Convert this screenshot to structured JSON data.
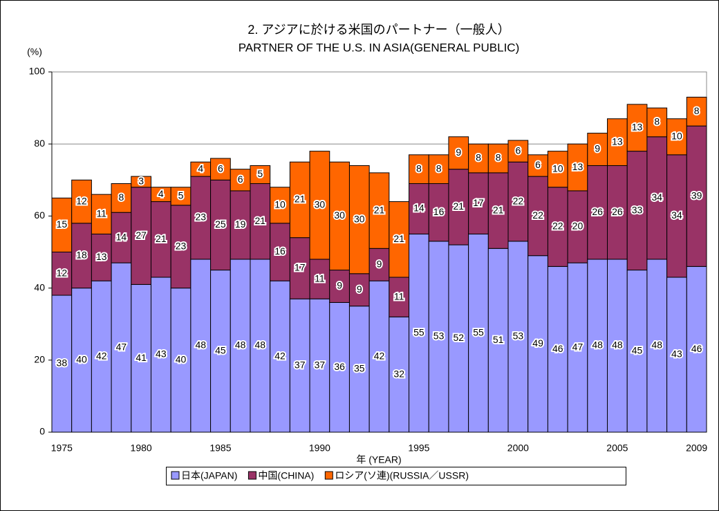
{
  "chart_data": {
    "type": "stacked_bar",
    "title": "2. アジアに於ける米国のパートナー（一般人）",
    "subtitle": "PARTNER OF THE U.S. IN ASIA(GENERAL PUBLIC)",
    "y_label": "(%)",
    "x_label": "年 (YEAR)",
    "categories": [
      "1975",
      null,
      null,
      null,
      "1980",
      null,
      null,
      null,
      "1985",
      null,
      null,
      null,
      null,
      "1990",
      null,
      null,
      null,
      null,
      "1995",
      null,
      null,
      null,
      null,
      "2000",
      null,
      null,
      null,
      null,
      "2005",
      null,
      null,
      null,
      "2009"
    ],
    "series": [
      {
        "name": "日本(JAPAN)",
        "color": "#9999ff",
        "values": [
          38,
          40,
          42,
          47,
          41,
          43,
          40,
          48,
          45,
          48,
          48,
          42,
          37,
          37,
          36,
          35,
          42,
          32,
          55,
          53,
          52,
          55,
          51,
          53,
          49,
          46,
          47,
          48,
          48,
          45,
          48,
          43,
          46
        ]
      },
      {
        "name": "中国(CHINA)",
        "color": "#993366",
        "values": [
          12,
          18,
          13,
          14,
          27,
          21,
          23,
          23,
          25,
          19,
          21,
          16,
          17,
          11,
          9,
          9,
          9,
          11,
          14,
          16,
          21,
          17,
          21,
          22,
          22,
          22,
          20,
          26,
          26,
          33,
          34,
          34,
          39
        ]
      },
      {
        "name": "ロシア(ソ連)(RUSSIA／USSR)",
        "color": "#ff6600",
        "values": [
          15,
          12,
          11,
          8,
          3,
          4,
          5,
          4,
          6,
          6,
          5,
          10,
          21,
          30,
          30,
          30,
          21,
          21,
          8,
          8,
          9,
          8,
          8,
          6,
          6,
          10,
          13,
          9,
          13,
          13,
          8,
          10,
          8
        ]
      }
    ],
    "ylim": [
      0,
      100
    ],
    "yticks": [
      0,
      20,
      40,
      60,
      80,
      100
    ],
    "grid": true
  }
}
